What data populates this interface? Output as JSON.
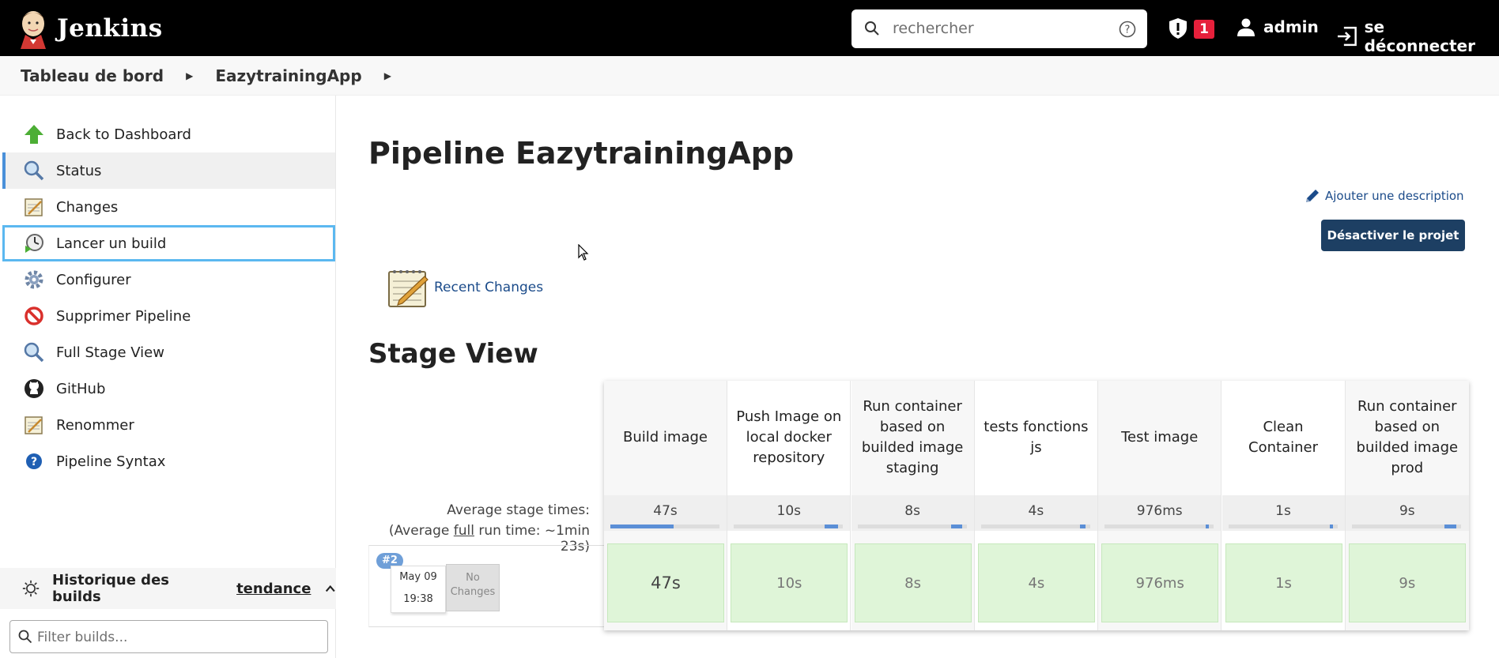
{
  "header": {
    "app_name": "Jenkins",
    "search_placeholder": "rechercher",
    "security_count": "1",
    "user": "admin",
    "logout": "se déconnecter"
  },
  "breadcrumb": [
    "Tableau de bord",
    "EazytrainingApp"
  ],
  "sidebar": {
    "items": [
      {
        "label": "Back to Dashboard",
        "icon": "up-arrow-icon"
      },
      {
        "label": "Status",
        "icon": "magnifier-icon"
      },
      {
        "label": "Changes",
        "icon": "notepad-icon"
      },
      {
        "label": "Lancer un build",
        "icon": "build-clock-icon"
      },
      {
        "label": "Configurer",
        "icon": "gear-icon"
      },
      {
        "label": "Supprimer Pipeline",
        "icon": "no-entry-icon"
      },
      {
        "label": "Full Stage View",
        "icon": "magnifier-icon"
      },
      {
        "label": "GitHub",
        "icon": "github-icon"
      },
      {
        "label": "Renommer",
        "icon": "notepad-icon"
      },
      {
        "label": "Pipeline Syntax",
        "icon": "help-icon"
      }
    ],
    "history_title": "Historique des builds",
    "history_trend": "tendance",
    "filter_placeholder": "Filter builds..."
  },
  "main": {
    "title": "Pipeline EazytrainingApp",
    "add_description": "Ajouter une description",
    "disable_button": "Désactiver le projet",
    "recent_changes": "Recent Changes",
    "stage_view_title": "Stage View"
  },
  "stage_view": {
    "avg_label": "Average stage times:",
    "avg_full_prefix": "(Average ",
    "avg_full_word": "full",
    "avg_full_suffix": " run time: ~1min 23s)",
    "stages": [
      {
        "name": "Build image",
        "avg": "47s",
        "cell": "47s",
        "bar_fill": 0.58
      },
      {
        "name": "Push Image on local docker repository",
        "avg": "10s",
        "cell": "10s",
        "bar_fill": 0.12
      },
      {
        "name": "Run container based on builded image staging",
        "avg": "8s",
        "cell": "8s",
        "bar_fill": 0.1
      },
      {
        "name": "tests fonctions js",
        "avg": "4s",
        "cell": "4s",
        "bar_fill": 0.05
      },
      {
        "name": "Test image",
        "avg": "976ms",
        "cell": "976ms",
        "bar_fill": 0.02
      },
      {
        "name": "Clean Container",
        "avg": "1s",
        "cell": "1s",
        "bar_fill": 0.02
      },
      {
        "name": "Run container based on builded image prod",
        "avg": "9s",
        "cell": "9s",
        "bar_fill": 0.11
      }
    ],
    "build": {
      "number": "#2",
      "date": "May 09",
      "time": "19:38",
      "changes": "No Changes"
    }
  },
  "colors": {
    "header_bg": "#000000",
    "success_cell": "#dff5d8",
    "primary_button": "#1d3f63",
    "badge": "#e6203b",
    "link": "#1b4b8a"
  }
}
